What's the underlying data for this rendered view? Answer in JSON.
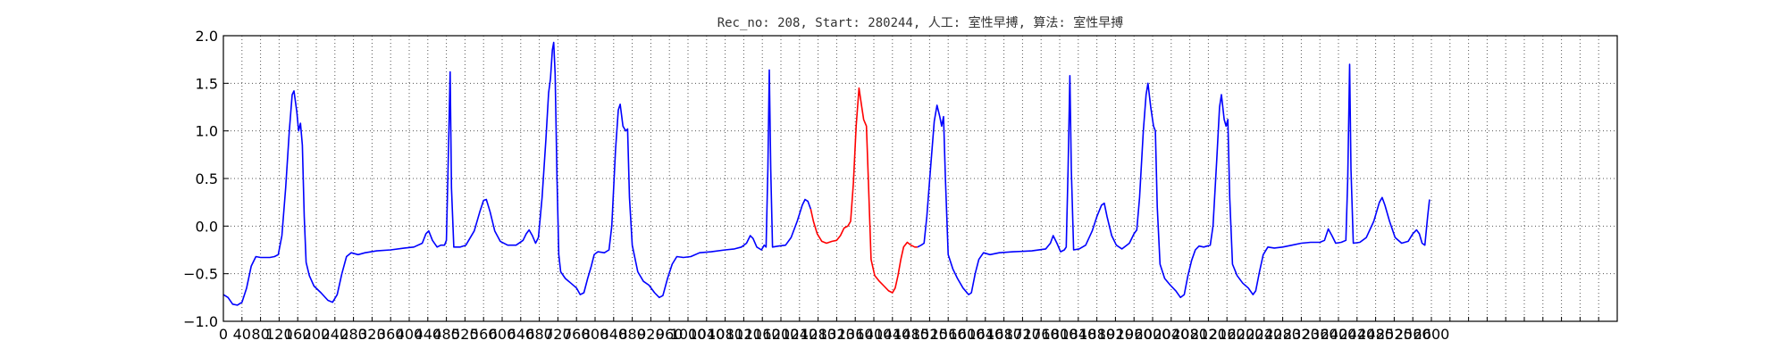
{
  "chart_data": {
    "type": "line",
    "title": "Rec_no: 208, Start: 280244, 人工: 室性早搏, 算法: 室性早搏",
    "xlabel": "",
    "ylabel": "",
    "xlim": [
      0,
      3000
    ],
    "ylim": [
      -1.0,
      2.0
    ],
    "grid": true,
    "x_tick_values": [
      0,
      40,
      80,
      120,
      160,
      200,
      240,
      280,
      320,
      360,
      400,
      440,
      480,
      520,
      560,
      600,
      640,
      680,
      720,
      760,
      800,
      840,
      880,
      920,
      960,
      1000,
      1040,
      1080,
      1120,
      1160,
      1200,
      1240,
      1280,
      1320,
      1360,
      1400,
      1440,
      1480,
      1520,
      1560,
      1600,
      1640,
      1680,
      1720,
      1760,
      1800,
      1840,
      1880,
      1920,
      1960,
      2000,
      2040,
      2080,
      2120,
      2160,
      2200,
      2240,
      2280,
      2320,
      2360,
      2400,
      2440,
      2480,
      2520,
      2560,
      2600,
      2640,
      2680,
      2720,
      2760,
      2800,
      2840,
      2880,
      2920,
      2960,
      3000
    ],
    "x_tick_labels_visible": [
      "0",
      "40",
      "80",
      "120",
      "160",
      "200",
      "240",
      "280",
      "320",
      "360",
      "400",
      "440",
      "480",
      "520",
      "560",
      "600",
      "640",
      "680",
      "720",
      "760",
      "800",
      "840",
      "880",
      "920",
      "960",
      "1000",
      "1040",
      "1080",
      "1120",
      "1160",
      "1200",
      "1240",
      "1280",
      "1320",
      "1360",
      "1400",
      "1440",
      "1480",
      "1520",
      "1560",
      "1600",
      "1640",
      "1680",
      "1720",
      "1760",
      "1800",
      "1840",
      "1880",
      "1920",
      "1960",
      "2000",
      "2040",
      "2080",
      "2120",
      "2160",
      "2200",
      "2240",
      "2280",
      "2320",
      "2360",
      "2400",
      "2440",
      "2480",
      "2520",
      "2560",
      "2600"
    ],
    "y_ticks": [
      {
        "value": -1.0,
        "label": "−1.0"
      },
      {
        "value": -0.5,
        "label": "−0.5"
      },
      {
        "value": 0.0,
        "label": "0.0"
      },
      {
        "value": 0.5,
        "label": "0.5"
      },
      {
        "value": 1.0,
        "label": "1.0"
      },
      {
        "value": 1.5,
        "label": "1.5"
      },
      {
        "value": 2.0,
        "label": "2.0"
      }
    ],
    "series": [
      {
        "color": "#0000ff",
        "points": [
          [
            0,
            -0.72
          ],
          [
            10,
            -0.75
          ],
          [
            20,
            -0.82
          ],
          [
            30,
            -0.83
          ],
          [
            40,
            -0.8
          ],
          [
            50,
            -0.65
          ],
          [
            60,
            -0.42
          ],
          [
            70,
            -0.32
          ],
          [
            80,
            -0.33
          ],
          [
            90,
            -0.33
          ],
          [
            100,
            -0.33
          ],
          [
            110,
            -0.32
          ],
          [
            118,
            -0.3
          ],
          [
            126,
            -0.1
          ],
          [
            134,
            0.4
          ],
          [
            142,
            1.0
          ],
          [
            148,
            1.38
          ],
          [
            152,
            1.42
          ],
          [
            158,
            1.2
          ],
          [
            162,
            1.0
          ],
          [
            166,
            1.08
          ],
          [
            170,
            0.85
          ],
          [
            174,
            0.1
          ],
          [
            178,
            -0.38
          ],
          [
            185,
            -0.52
          ],
          [
            195,
            -0.63
          ],
          [
            210,
            -0.7
          ],
          [
            225,
            -0.78
          ],
          [
            235,
            -0.8
          ],
          [
            245,
            -0.72
          ],
          [
            255,
            -0.5
          ],
          [
            265,
            -0.32
          ],
          [
            275,
            -0.28
          ],
          [
            290,
            -0.3
          ],
          [
            305,
            -0.28
          ],
          [
            330,
            -0.26
          ],
          [
            360,
            -0.25
          ],
          [
            390,
            -0.23
          ],
          [
            410,
            -0.22
          ],
          [
            428,
            -0.18
          ],
          [
            436,
            -0.08
          ],
          [
            442,
            -0.05
          ],
          [
            450,
            -0.15
          ],
          [
            460,
            -0.22
          ],
          [
            468,
            -0.2
          ],
          [
            476,
            -0.2
          ],
          [
            480,
            -0.15
          ],
          [
            484,
            0.7
          ],
          [
            488,
            1.62
          ],
          [
            491,
            0.4
          ],
          [
            496,
            -0.22
          ],
          [
            510,
            -0.22
          ],
          [
            522,
            -0.2
          ],
          [
            540,
            -0.05
          ],
          [
            552,
            0.15
          ],
          [
            560,
            0.27
          ],
          [
            566,
            0.28
          ],
          [
            574,
            0.15
          ],
          [
            584,
            -0.05
          ],
          [
            596,
            -0.16
          ],
          [
            612,
            -0.2
          ],
          [
            630,
            -0.2
          ],
          [
            645,
            -0.15
          ],
          [
            652,
            -0.08
          ],
          [
            658,
            -0.04
          ],
          [
            665,
            -0.1
          ],
          [
            672,
            -0.18
          ],
          [
            678,
            -0.12
          ],
          [
            686,
            0.3
          ],
          [
            694,
            0.9
          ],
          [
            700,
            1.4
          ],
          [
            704,
            1.55
          ],
          [
            708,
            1.85
          ],
          [
            711,
            1.93
          ],
          [
            714,
            1.6
          ],
          [
            718,
            0.5
          ],
          [
            722,
            -0.3
          ],
          [
            726,
            -0.48
          ],
          [
            736,
            -0.55
          ],
          [
            748,
            -0.6
          ],
          [
            760,
            -0.65
          ],
          [
            768,
            -0.72
          ],
          [
            776,
            -0.7
          ],
          [
            784,
            -0.55
          ],
          [
            792,
            -0.42
          ],
          [
            798,
            -0.3
          ],
          [
            806,
            -0.27
          ],
          [
            820,
            -0.28
          ],
          [
            830,
            -0.25
          ],
          [
            836,
            0.0
          ],
          [
            844,
            0.8
          ],
          [
            850,
            1.22
          ],
          [
            854,
            1.28
          ],
          [
            860,
            1.05
          ],
          [
            866,
            1.0
          ],
          [
            870,
            1.02
          ],
          [
            874,
            0.3
          ],
          [
            880,
            -0.2
          ],
          [
            892,
            -0.48
          ],
          [
            904,
            -0.58
          ],
          [
            916,
            -0.62
          ],
          [
            928,
            -0.7
          ],
          [
            938,
            -0.75
          ],
          [
            946,
            -0.73
          ],
          [
            956,
            -0.55
          ],
          [
            966,
            -0.4
          ],
          [
            976,
            -0.32
          ],
          [
            990,
            -0.33
          ],
          [
            1006,
            -0.32
          ],
          [
            1025,
            -0.28
          ],
          [
            1050,
            -0.27
          ],
          [
            1080,
            -0.25
          ],
          [
            1100,
            -0.24
          ],
          [
            1115,
            -0.22
          ],
          [
            1126,
            -0.18
          ],
          [
            1134,
            -0.1
          ],
          [
            1140,
            -0.13
          ],
          [
            1148,
            -0.22
          ],
          [
            1158,
            -0.25
          ],
          [
            1164,
            -0.2
          ],
          [
            1168,
            -0.22
          ],
          [
            1172,
            0.6
          ],
          [
            1175,
            1.64
          ],
          [
            1178,
            0.6
          ],
          [
            1182,
            -0.22
          ],
          [
            1195,
            -0.21
          ],
          [
            1210,
            -0.2
          ],
          [
            1222,
            -0.12
          ],
          [
            1235,
            0.05
          ],
          [
            1246,
            0.22
          ],
          [
            1252,
            0.28
          ],
          [
            1258,
            0.26
          ],
          [
            1264,
            0.18
          ]
        ]
      },
      {
        "color": "#ff0000",
        "points": [
          [
            1264,
            0.18
          ],
          [
            1270,
            0.05
          ],
          [
            1278,
            -0.08
          ],
          [
            1288,
            -0.16
          ],
          [
            1298,
            -0.18
          ],
          [
            1310,
            -0.16
          ],
          [
            1320,
            -0.15
          ],
          [
            1328,
            -0.1
          ],
          [
            1336,
            -0.02
          ],
          [
            1344,
            0.0
          ],
          [
            1350,
            0.05
          ],
          [
            1356,
            0.45
          ],
          [
            1362,
            1.05
          ],
          [
            1368,
            1.45
          ],
          [
            1374,
            1.25
          ],
          [
            1378,
            1.12
          ],
          [
            1384,
            1.05
          ],
          [
            1388,
            0.5
          ],
          [
            1394,
            -0.35
          ],
          [
            1402,
            -0.52
          ],
          [
            1412,
            -0.58
          ],
          [
            1422,
            -0.63
          ],
          [
            1432,
            -0.68
          ],
          [
            1440,
            -0.7
          ],
          [
            1446,
            -0.65
          ],
          [
            1452,
            -0.52
          ],
          [
            1458,
            -0.35
          ],
          [
            1464,
            -0.22
          ],
          [
            1472,
            -0.17
          ],
          [
            1480,
            -0.2
          ],
          [
            1488,
            -0.22
          ],
          [
            1494,
            -0.22
          ]
        ]
      },
      {
        "color": "#0000ff",
        "points": [
          [
            1494,
            -0.22
          ],
          [
            1502,
            -0.2
          ],
          [
            1508,
            -0.18
          ],
          [
            1514,
            0.1
          ],
          [
            1522,
            0.6
          ],
          [
            1530,
            1.1
          ],
          [
            1536,
            1.27
          ],
          [
            1542,
            1.15
          ],
          [
            1546,
            1.05
          ],
          [
            1550,
            1.15
          ],
          [
            1554,
            0.5
          ],
          [
            1560,
            -0.3
          ],
          [
            1570,
            -0.45
          ],
          [
            1580,
            -0.55
          ],
          [
            1592,
            -0.65
          ],
          [
            1604,
            -0.72
          ],
          [
            1610,
            -0.7
          ],
          [
            1618,
            -0.5
          ],
          [
            1626,
            -0.35
          ],
          [
            1636,
            -0.28
          ],
          [
            1650,
            -0.3
          ],
          [
            1670,
            -0.28
          ],
          [
            1700,
            -0.27
          ],
          [
            1740,
            -0.26
          ],
          [
            1770,
            -0.24
          ],
          [
            1780,
            -0.18
          ],
          [
            1786,
            -0.1
          ],
          [
            1794,
            -0.18
          ],
          [
            1802,
            -0.27
          ],
          [
            1810,
            -0.25
          ],
          [
            1814,
            -0.22
          ],
          [
            1818,
            0.6
          ],
          [
            1822,
            1.58
          ],
          [
            1825,
            0.6
          ],
          [
            1830,
            -0.25
          ],
          [
            1842,
            -0.24
          ],
          [
            1856,
            -0.2
          ],
          [
            1870,
            -0.05
          ],
          [
            1880,
            0.1
          ],
          [
            1890,
            0.22
          ],
          [
            1896,
            0.24
          ],
          [
            1902,
            0.1
          ],
          [
            1912,
            -0.1
          ],
          [
            1922,
            -0.2
          ],
          [
            1934,
            -0.24
          ],
          [
            1950,
            -0.18
          ],
          [
            1960,
            -0.08
          ],
          [
            1966,
            -0.04
          ],
          [
            1972,
            0.3
          ],
          [
            1980,
            1.0
          ],
          [
            1986,
            1.38
          ],
          [
            1990,
            1.5
          ],
          [
            1996,
            1.25
          ],
          [
            2002,
            1.05
          ],
          [
            2006,
            1.0
          ],
          [
            2010,
            0.2
          ],
          [
            2016,
            -0.4
          ],
          [
            2026,
            -0.55
          ],
          [
            2038,
            -0.62
          ],
          [
            2050,
            -0.68
          ],
          [
            2060,
            -0.75
          ],
          [
            2068,
            -0.72
          ],
          [
            2076,
            -0.52
          ],
          [
            2084,
            -0.36
          ],
          [
            2092,
            -0.25
          ],
          [
            2100,
            -0.21
          ],
          [
            2110,
            -0.22
          ],
          [
            2124,
            -0.2
          ],
          [
            2130,
            0.0
          ],
          [
            2138,
            0.7
          ],
          [
            2144,
            1.25
          ],
          [
            2148,
            1.38
          ],
          [
            2154,
            1.12
          ],
          [
            2158,
            1.05
          ],
          [
            2162,
            1.12
          ],
          [
            2166,
            0.3
          ],
          [
            2172,
            -0.4
          ],
          [
            2182,
            -0.52
          ],
          [
            2194,
            -0.6
          ],
          [
            2206,
            -0.65
          ],
          [
            2216,
            -0.72
          ],
          [
            2222,
            -0.68
          ],
          [
            2230,
            -0.48
          ],
          [
            2238,
            -0.3
          ],
          [
            2248,
            -0.22
          ],
          [
            2262,
            -0.23
          ],
          [
            2280,
            -0.22
          ],
          [
            2300,
            -0.2
          ],
          [
            2320,
            -0.18
          ],
          [
            2340,
            -0.17
          ],
          [
            2360,
            -0.17
          ],
          [
            2370,
            -0.15
          ],
          [
            2378,
            -0.03
          ],
          [
            2386,
            -0.1
          ],
          [
            2394,
            -0.18
          ],
          [
            2406,
            -0.17
          ],
          [
            2416,
            -0.15
          ],
          [
            2420,
            0.5
          ],
          [
            2424,
            1.7
          ],
          [
            2427,
            0.6
          ],
          [
            2432,
            -0.18
          ],
          [
            2446,
            -0.17
          ],
          [
            2460,
            -0.12
          ],
          [
            2476,
            0.05
          ],
          [
            2488,
            0.25
          ],
          [
            2494,
            0.3
          ],
          [
            2500,
            0.22
          ],
          [
            2510,
            0.05
          ],
          [
            2522,
            -0.12
          ],
          [
            2536,
            -0.18
          ],
          [
            2550,
            -0.16
          ],
          [
            2560,
            -0.08
          ],
          [
            2568,
            -0.04
          ],
          [
            2574,
            -0.08
          ],
          [
            2580,
            -0.18
          ],
          [
            2586,
            -0.2
          ],
          [
            2592,
            0.1
          ],
          [
            2596,
            0.28
          ]
        ]
      }
    ]
  }
}
